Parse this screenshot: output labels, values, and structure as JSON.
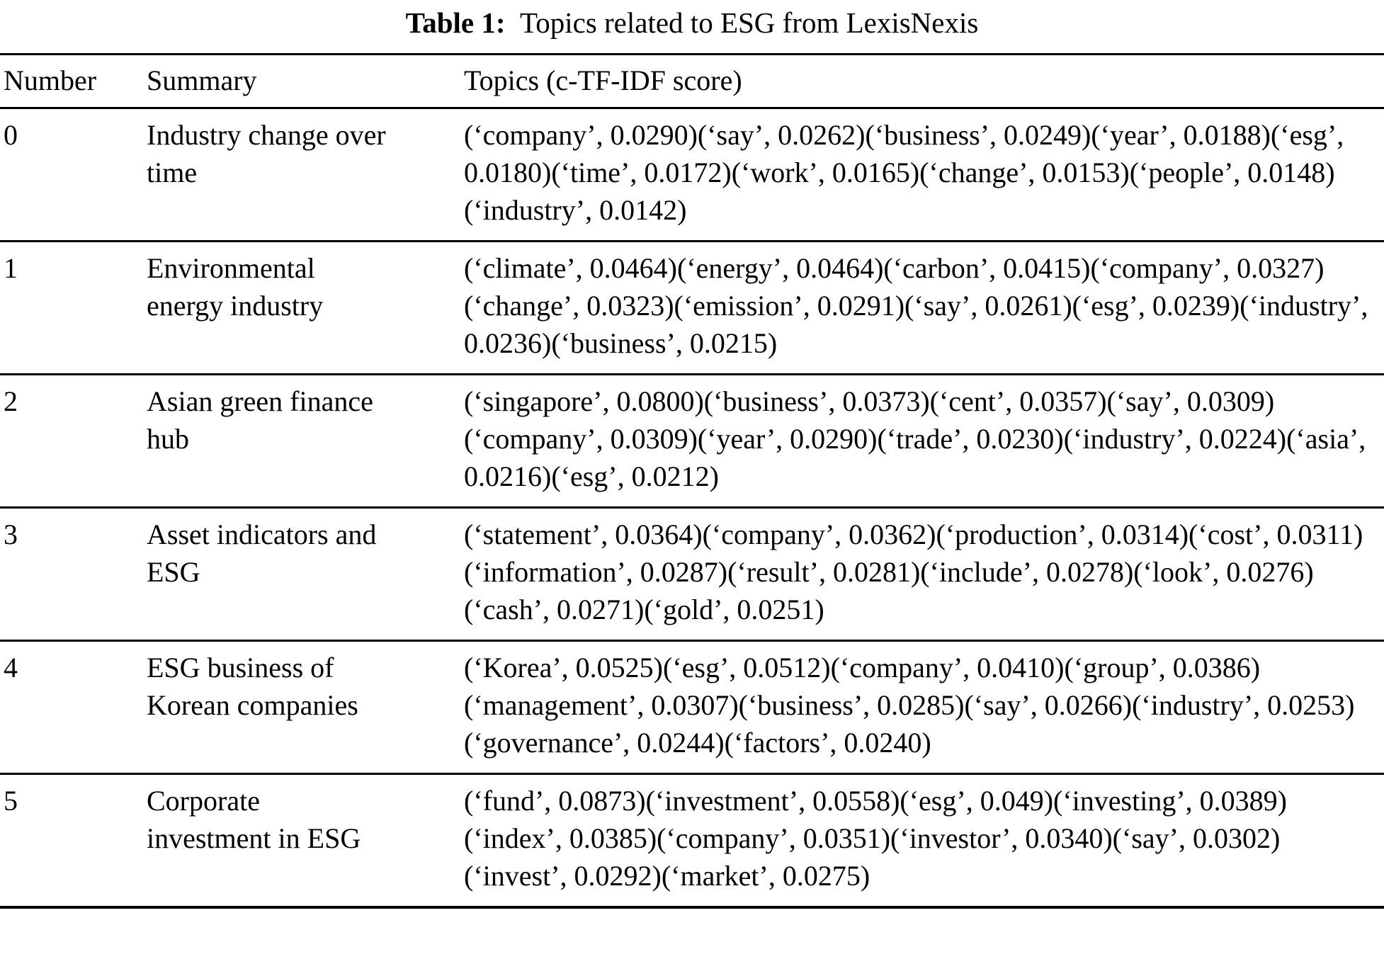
{
  "caption": {
    "label": "Table 1:",
    "title": "Topics related to ESG from LexisNexis"
  },
  "table": {
    "headers": {
      "number": "Number",
      "summary": "Summary",
      "topics": "Topics (c-TF-IDF score)"
    },
    "rows": [
      {
        "number": "0",
        "summary": "Industry change over\ntime",
        "topics": "(‘company’, 0.0290)(‘say’, 0.0262)(‘business’, 0.0249)(‘year’, 0.0188)(‘esg’, 0.0180)(‘time’, 0.0172)(‘work’, 0.0165)(‘change’, 0.0153)(‘people’, 0.0148)(‘industry’, 0.0142)"
      },
      {
        "number": "1",
        "summary": "Environmental\nenergy industry",
        "topics": "(‘climate’, 0.0464)(‘energy’, 0.0464)(‘carbon’, 0.0415)(‘company’, 0.0327)(‘change’, 0.0323)(‘emission’, 0.0291)(‘say’, 0.0261)(‘esg’, 0.0239)(‘industry’, 0.0236)(‘business’, 0.0215)"
      },
      {
        "number": "2",
        "summary": "Asian green finance\nhub",
        "topics": "(‘singapore’, 0.0800)(‘business’, 0.0373)(‘cent’, 0.0357)(‘say’, 0.0309)(‘company’, 0.0309)(‘year’, 0.0290)(‘trade’, 0.0230)(‘industry’, 0.0224)(‘asia’, 0.0216)(‘esg’, 0.0212)"
      },
      {
        "number": "3",
        "summary": "Asset indicators and\nESG",
        "topics": "(‘statement’, 0.0364)(‘company’, 0.0362)(‘production’, 0.0314)(‘cost’, 0.0311)(‘information’, 0.0287)(‘result’, 0.0281)(‘include’, 0.0278)(‘look’, 0.0276)(‘cash’, 0.0271)(‘gold’, 0.0251)"
      },
      {
        "number": "4",
        "summary": "ESG business of\nKorean companies",
        "topics": "(‘Korea’, 0.0525)(‘esg’, 0.0512)(‘company’, 0.0410)(‘group’, 0.0386)(‘management’, 0.0307)(‘business’, 0.0285)(‘say’, 0.0266)(‘industry’, 0.0253)(‘governance’, 0.0244)(‘factors’, 0.0240)"
      },
      {
        "number": "5",
        "summary": "Corporate\ninvestment in ESG",
        "topics": "(‘fund’, 0.0873)(‘investment’, 0.0558)(‘esg’, 0.049)(‘investing’, 0.0389)(‘index’, 0.0385)(‘company’, 0.0351)(‘investor’, 0.0340)(‘say’, 0.0302)(‘invest’, 0.0292)(‘market’, 0.0275)"
      }
    ]
  }
}
